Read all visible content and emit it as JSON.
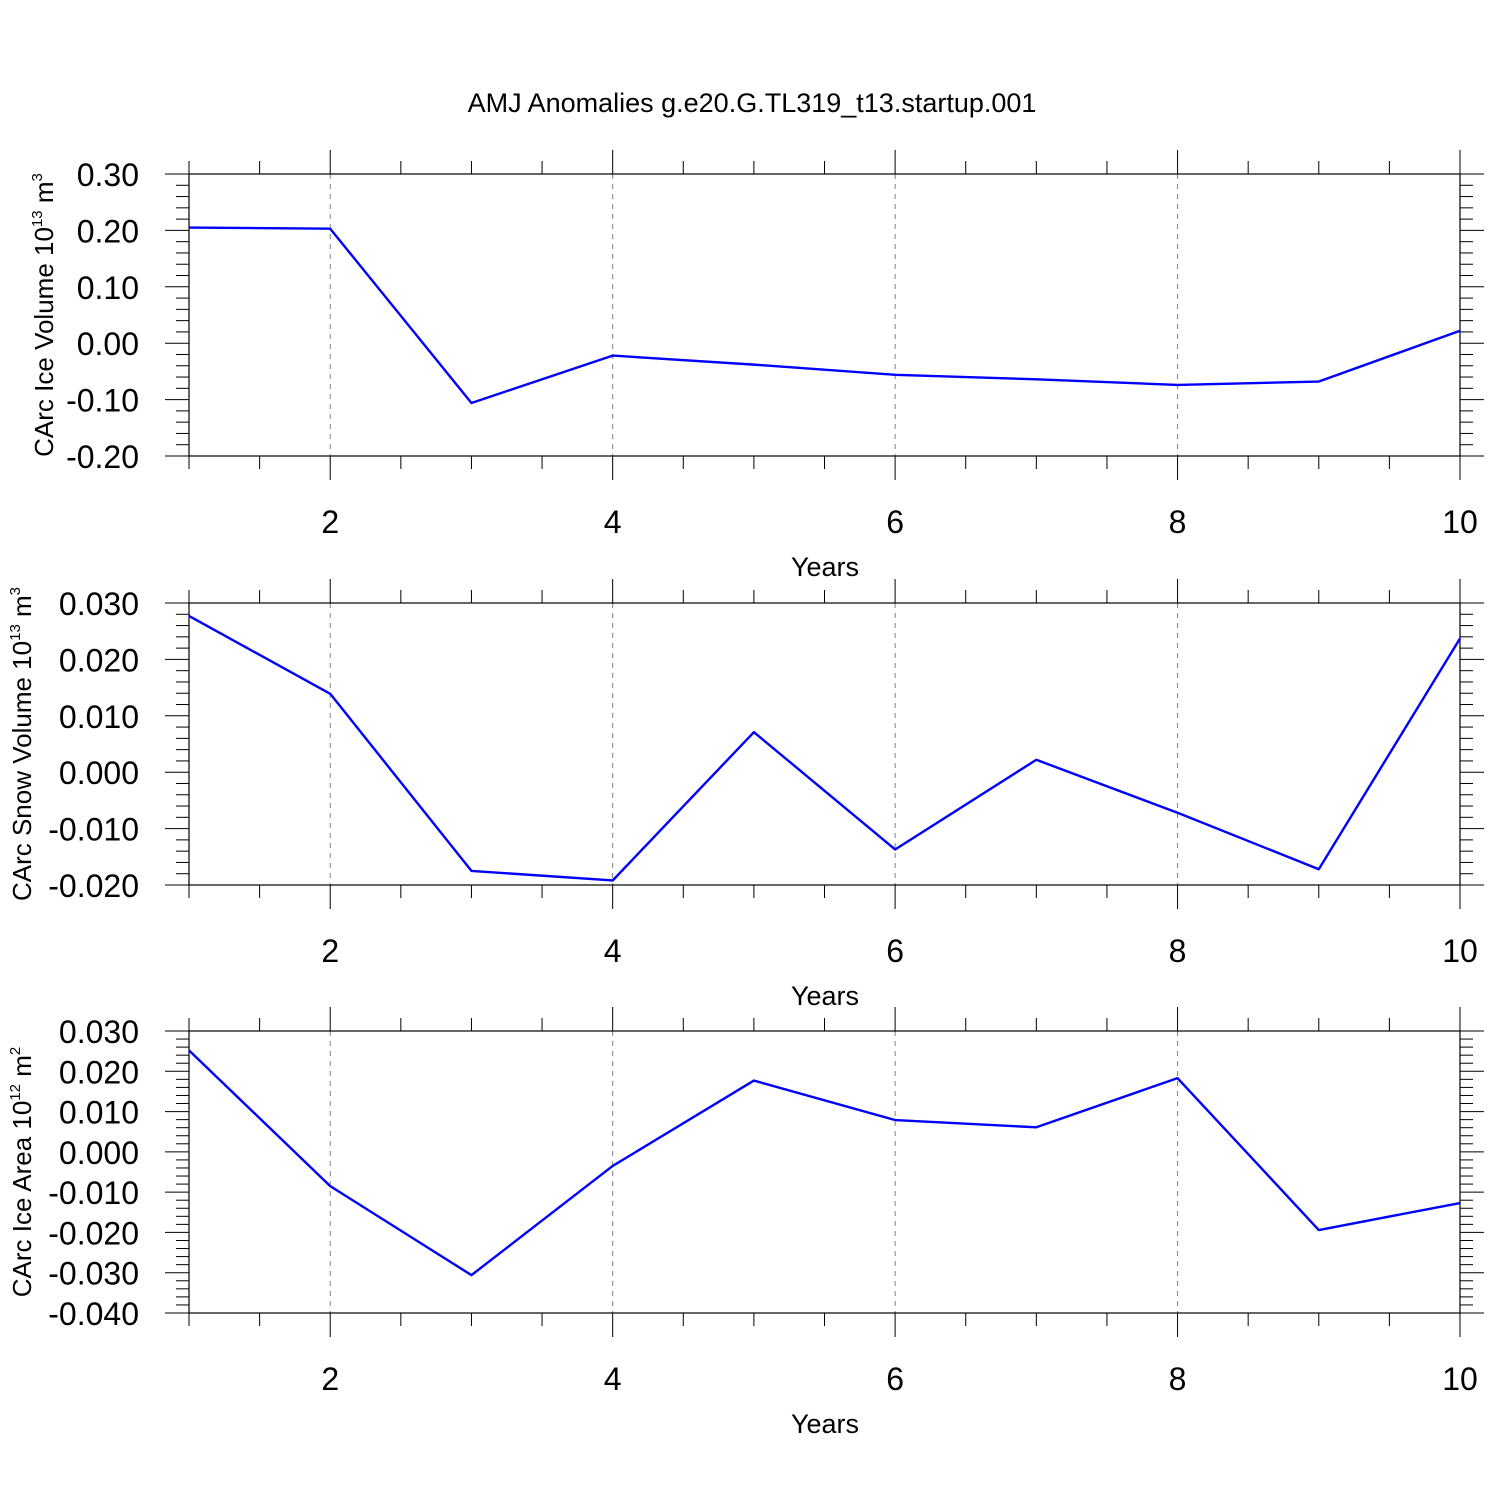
{
  "title": "AMJ Anomalies g.e20.G.TL319_t13.startup.001",
  "colors": {
    "line": "#0000ff",
    "axis": "#000000",
    "grid": "#808080"
  },
  "chart_data": [
    {
      "type": "line",
      "ylabel": {
        "text": "CArc Ice Volume 10",
        "exp": "13",
        "unit": " m",
        "unit_exp": "3"
      },
      "xlabel": "Years",
      "x": [
        1,
        2,
        3,
        4,
        5,
        6,
        7,
        8,
        9,
        10
      ],
      "series": [
        {
          "values": [
            0.205,
            0.203,
            -0.106,
            -0.022,
            -0.038,
            -0.056,
            -0.064,
            -0.074,
            -0.068,
            0.022
          ]
        }
      ],
      "xlim": [
        1,
        10
      ],
      "ylim": [
        -0.2,
        0.3
      ],
      "xticks": [
        2,
        4,
        6,
        8,
        10
      ],
      "xtick_labels": [
        "2",
        "4",
        "6",
        "8",
        "10"
      ],
      "yticks": [
        -0.2,
        -0.1,
        0,
        0.1,
        0.2,
        0.3
      ],
      "ytick_labels": [
        "-0.20",
        "-0.10",
        "0.00",
        "0.10",
        "0.20",
        "0.30"
      ],
      "grid": "vertical dashed at major x ticks"
    },
    {
      "type": "line",
      "ylabel": {
        "text": "CArc Snow Volume 10",
        "exp": "13",
        "unit": " m",
        "unit_exp": "3"
      },
      "xlabel": "Years",
      "x": [
        1,
        2,
        3,
        4,
        5,
        6,
        7,
        8,
        9,
        10
      ],
      "series": [
        {
          "values": [
            0.0277,
            0.0139,
            -0.0175,
            -0.0192,
            0.0071,
            -0.0137,
            0.0022,
            -0.0072,
            -0.0172,
            0.0237
          ]
        }
      ],
      "xlim": [
        1,
        10
      ],
      "ylim": [
        -0.02,
        0.03
      ],
      "xticks": [
        2,
        4,
        6,
        8,
        10
      ],
      "xtick_labels": [
        "2",
        "4",
        "6",
        "8",
        "10"
      ],
      "yticks": [
        -0.02,
        -0.01,
        0,
        0.01,
        0.02,
        0.03
      ],
      "ytick_labels": [
        "-0.020",
        "-0.010",
        "0.000",
        "0.010",
        "0.020",
        "0.030"
      ],
      "grid": "vertical dashed at major x ticks"
    },
    {
      "type": "line",
      "ylabel": {
        "text": "CArc Ice Area 10",
        "exp": "12",
        "unit": " m",
        "unit_exp": "2"
      },
      "xlabel": "Years",
      "x": [
        1,
        2,
        3,
        4,
        5,
        6,
        7,
        8,
        9,
        10
      ],
      "series": [
        {
          "values": [
            0.0252,
            -0.0085,
            -0.0306,
            -0.0035,
            0.0177,
            0.0079,
            0.0061,
            0.0183,
            -0.0194,
            -0.0127
          ]
        }
      ],
      "xlim": [
        1,
        10
      ],
      "ylim": [
        -0.04,
        0.03
      ],
      "xticks": [
        2,
        4,
        6,
        8,
        10
      ],
      "xtick_labels": [
        "2",
        "4",
        "6",
        "8",
        "10"
      ],
      "yticks": [
        -0.04,
        -0.03,
        -0.02,
        -0.01,
        0,
        0.01,
        0.02,
        0.03
      ],
      "ytick_labels": [
        "-0.040",
        "-0.030",
        "-0.020",
        "-0.010",
        "0.000",
        "0.010",
        "0.020",
        "0.030"
      ],
      "grid": "vertical dashed at major x ticks"
    }
  ]
}
